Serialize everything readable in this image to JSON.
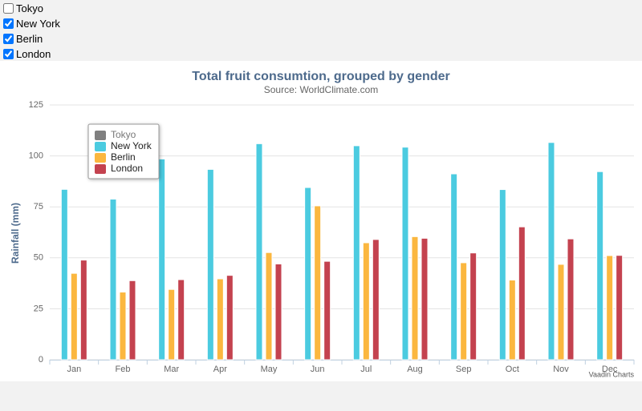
{
  "checkboxes": [
    {
      "label": "Tokyo",
      "checked": false
    },
    {
      "label": "New York",
      "checked": true
    },
    {
      "label": "Berlin",
      "checked": true
    },
    {
      "label": "London",
      "checked": true
    }
  ],
  "chart_data": {
    "type": "bar",
    "title": "Total fruit consumtion, grouped by gender",
    "subtitle": "Source: WorldClimate.com",
    "y_label": "Rainfall (mm)",
    "credits": "Vaadin Charts",
    "categories": [
      "Jan",
      "Feb",
      "Mar",
      "Apr",
      "May",
      "Jun",
      "Jul",
      "Aug",
      "Sep",
      "Oct",
      "Nov",
      "Dec"
    ],
    "series": [
      {
        "name": "Tokyo",
        "color": "#808080",
        "visible": false,
        "values": [
          null,
          null,
          null,
          null,
          null,
          null,
          null,
          null,
          null,
          null,
          null,
          null
        ]
      },
      {
        "name": "New York",
        "color": "#4bcbe0",
        "visible": true,
        "values": [
          83.6,
          78.8,
          98.5,
          93.4,
          106.0,
          84.5,
          105.0,
          104.3,
          91.2,
          83.5,
          106.6,
          92.3
        ]
      },
      {
        "name": "Berlin",
        "color": "#fbb73f",
        "visible": true,
        "values": [
          42.4,
          33.2,
          34.5,
          39.7,
          52.6,
          75.5,
          57.4,
          60.4,
          47.6,
          39.1,
          46.8,
          51.1
        ]
      },
      {
        "name": "London",
        "color": "#c4424f",
        "visible": true,
        "values": [
          48.9,
          38.8,
          39.3,
          41.4,
          47.0,
          48.3,
          59.0,
          59.6,
          52.4,
          65.2,
          59.3,
          51.2
        ]
      }
    ],
    "ylim": [
      0,
      125
    ],
    "yticks": [
      0,
      25,
      50,
      75,
      100,
      125
    ],
    "grid": true,
    "legend": "top-left"
  }
}
